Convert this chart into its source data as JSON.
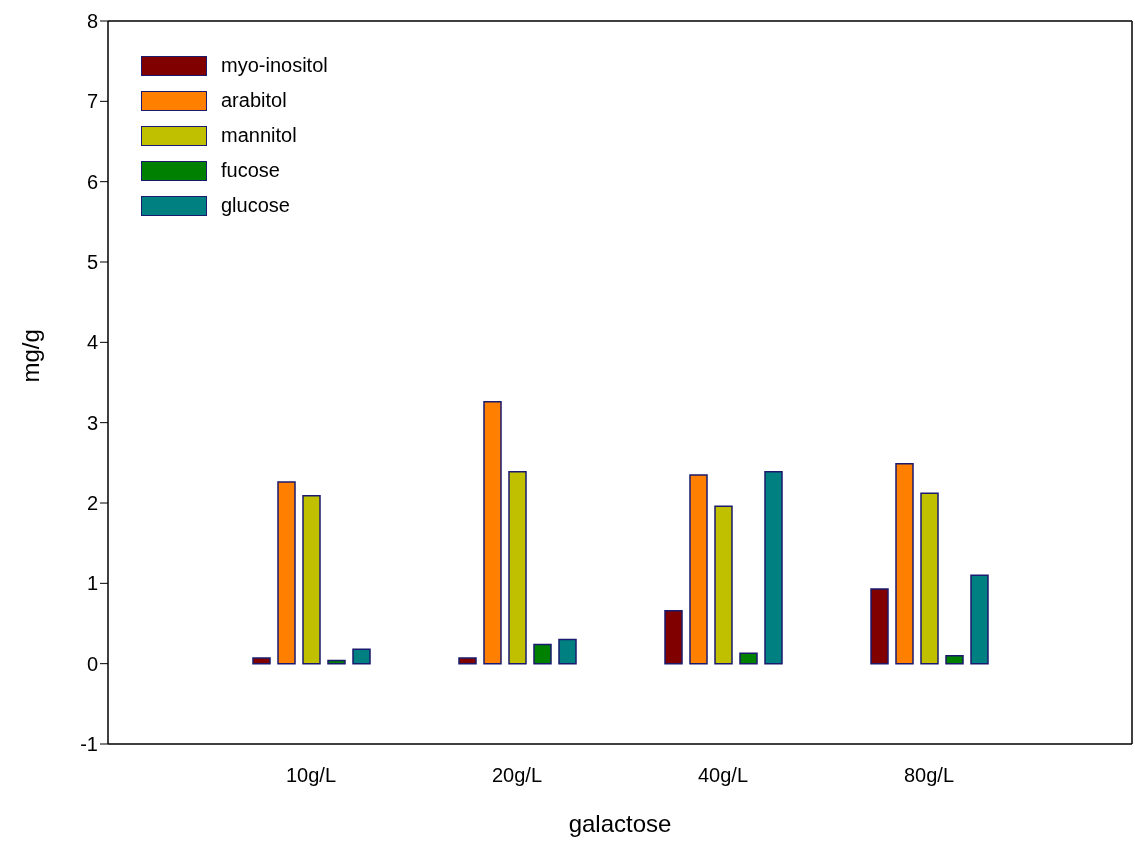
{
  "chart_data": {
    "type": "bar",
    "xlabel": "galactose",
    "ylabel": "mg/g",
    "categories": [
      "10g/L",
      "20g/L",
      "40g/L",
      "80g/L"
    ],
    "series": [
      {
        "name": "myo-inositol",
        "color": "#800000",
        "values": [
          0.07,
          0.07,
          0.66,
          0.93
        ]
      },
      {
        "name": "arabitol",
        "color": "#ff8000",
        "values": [
          2.26,
          3.26,
          2.35,
          2.49
        ]
      },
      {
        "name": "mannitol",
        "color": "#c0c000",
        "values": [
          2.09,
          2.39,
          1.96,
          2.12
        ]
      },
      {
        "name": "fucose",
        "color": "#008000",
        "values": [
          0.04,
          0.24,
          0.13,
          0.1
        ]
      },
      {
        "name": "glucose",
        "color": "#008080",
        "values": [
          0.18,
          0.3,
          2.39,
          1.1
        ]
      }
    ],
    "ylim": [
      -1,
      8
    ],
    "yticks": [
      -1,
      0,
      1,
      2,
      3,
      4,
      5,
      6,
      7,
      8
    ],
    "legend": "top left"
  }
}
